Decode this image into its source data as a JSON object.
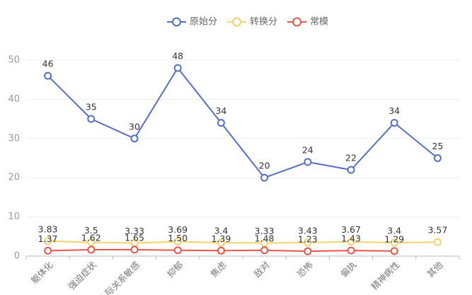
{
  "chart_data": {
    "type": "line",
    "categories": [
      "躯体化",
      "强迫症状",
      "人际关系敏感",
      "抑郁",
      "焦虑",
      "敌对",
      "恐怖",
      "偏执",
      "精神病性",
      "其他"
    ],
    "ylim": [
      0,
      50
    ],
    "yticks": [
      0,
      10,
      20,
      30,
      40,
      50
    ],
    "grid": true,
    "legend_position": "top-center",
    "series": [
      {
        "name": "原始分",
        "color": "#5470c6",
        "values": [
          46,
          35,
          30,
          48,
          34,
          20,
          24,
          22,
          34,
          25
        ],
        "labels": [
          "46",
          "35",
          "30",
          "48",
          "34",
          "20",
          "24",
          "22",
          "34",
          "25"
        ]
      },
      {
        "name": "转换分",
        "color": "#f3d36b",
        "values": [
          3.83,
          3.5,
          3.33,
          3.69,
          3.4,
          3.33,
          3.43,
          3.67,
          3.4,
          3.57
        ],
        "labels": [
          "3.83",
          "3.5",
          "3.33",
          "3.69",
          "3.4",
          "3.33",
          "3.43",
          "3.67",
          "3.4",
          "3.57"
        ]
      },
      {
        "name": "常模",
        "color": "#e8574c",
        "values": [
          1.37,
          1.62,
          1.65,
          1.5,
          1.39,
          1.48,
          1.23,
          1.43,
          1.29,
          null
        ],
        "labels": [
          "1.37",
          "1.62",
          "1.65",
          "1.50",
          "1.39",
          "1.48",
          "1.23",
          "1.43",
          "1.29",
          null
        ]
      }
    ]
  }
}
